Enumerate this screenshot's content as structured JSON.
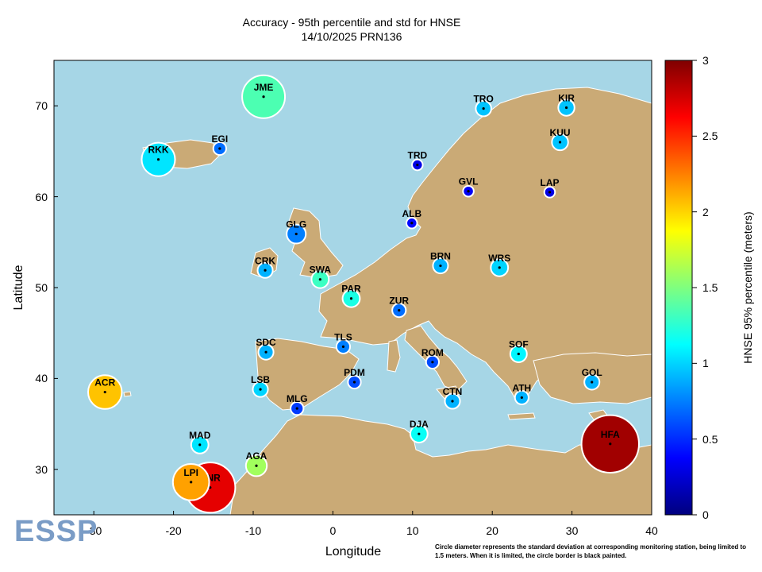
{
  "chart_data": {
    "type": "scatter",
    "title": "Accuracy - 95th percentile and std for HNSE",
    "subtitle": "14/10/2025 PRN136",
    "xlabel": "Longitude",
    "ylabel": "Latitude",
    "xlim": [
      -35,
      40
    ],
    "ylim": [
      25,
      75
    ],
    "xticks": [
      "-30",
      "-20",
      "-10",
      "0",
      "10",
      "20",
      "30",
      "40"
    ],
    "yticks": [
      "30",
      "40",
      "50",
      "60",
      "70"
    ],
    "colorbar": {
      "label": "HNSE 95% percentile (meters)",
      "range": [
        0,
        3
      ],
      "ticks": [
        "0",
        "0.5",
        "1",
        "1.5",
        "2",
        "2.5",
        "3"
      ]
    },
    "footnote": "Circle diameter represents the standard deviation at corresponding monitoring station, being limited to 1.5 meters. When it is limited, the circle border is black painted.",
    "logo": "ESSP",
    "stations": [
      {
        "name": "JME",
        "lon": -8.7,
        "lat": 71.0,
        "value": 1.35,
        "std": 1.0
      },
      {
        "name": "TRO",
        "lon": 18.9,
        "lat": 69.7,
        "value": 0.95,
        "std": 0.25
      },
      {
        "name": "KIR",
        "lon": 29.3,
        "lat": 69.8,
        "value": 0.95,
        "std": 0.27
      },
      {
        "name": "KUU",
        "lon": 28.5,
        "lat": 66.0,
        "value": 0.95,
        "std": 0.27
      },
      {
        "name": "EGI",
        "lon": -14.2,
        "lat": 65.3,
        "value": 0.7,
        "std": 0.18
      },
      {
        "name": "RKK",
        "lon": -21.9,
        "lat": 64.1,
        "value": 1.05,
        "std": 0.74
      },
      {
        "name": "TRD",
        "lon": 10.6,
        "lat": 63.5,
        "value": 0.3,
        "std": 0.12
      },
      {
        "name": "GVL",
        "lon": 17.0,
        "lat": 60.6,
        "value": 0.35,
        "std": 0.12
      },
      {
        "name": "LAP",
        "lon": 27.2,
        "lat": 60.5,
        "value": 0.3,
        "std": 0.12
      },
      {
        "name": "ALB",
        "lon": 9.9,
        "lat": 57.1,
        "value": 0.4,
        "std": 0.12
      },
      {
        "name": "GLG",
        "lon": -4.6,
        "lat": 55.9,
        "value": 0.75,
        "std": 0.35
      },
      {
        "name": "BRN",
        "lon": 13.5,
        "lat": 52.4,
        "value": 0.9,
        "std": 0.24
      },
      {
        "name": "WRS",
        "lon": 20.9,
        "lat": 52.2,
        "value": 1.0,
        "std": 0.3
      },
      {
        "name": "CRK",
        "lon": -8.5,
        "lat": 51.9,
        "value": 0.9,
        "std": 0.24
      },
      {
        "name": "SWA",
        "lon": -1.6,
        "lat": 50.9,
        "value": 1.3,
        "std": 0.3
      },
      {
        "name": "PAR",
        "lon": 2.3,
        "lat": 48.8,
        "value": 1.2,
        "std": 0.3
      },
      {
        "name": "ZUR",
        "lon": 8.3,
        "lat": 47.5,
        "value": 0.7,
        "std": 0.2
      },
      {
        "name": "TLS",
        "lon": 1.3,
        "lat": 43.5,
        "value": 0.75,
        "std": 0.2
      },
      {
        "name": "SDC",
        "lon": -8.4,
        "lat": 42.9,
        "value": 0.9,
        "std": 0.24
      },
      {
        "name": "SOF",
        "lon": 23.3,
        "lat": 42.7,
        "value": 1.1,
        "std": 0.28
      },
      {
        "name": "ROM",
        "lon": 12.5,
        "lat": 41.8,
        "value": 0.6,
        "std": 0.18
      },
      {
        "name": "GOL",
        "lon": 32.5,
        "lat": 39.6,
        "value": 0.9,
        "std": 0.24
      },
      {
        "name": "PDM",
        "lon": 2.7,
        "lat": 39.6,
        "value": 0.6,
        "std": 0.18
      },
      {
        "name": "ACR",
        "lon": -28.6,
        "lat": 38.5,
        "value": 2.05,
        "std": 0.75
      },
      {
        "name": "LSB",
        "lon": -9.1,
        "lat": 38.8,
        "value": 1.0,
        "std": 0.24
      },
      {
        "name": "ATH",
        "lon": 23.7,
        "lat": 37.9,
        "value": 0.9,
        "std": 0.2
      },
      {
        "name": "CTN",
        "lon": 15.0,
        "lat": 37.5,
        "value": 0.9,
        "std": 0.24
      },
      {
        "name": "MLG",
        "lon": -4.5,
        "lat": 36.7,
        "value": 0.55,
        "std": 0.18
      },
      {
        "name": "DJA",
        "lon": 10.8,
        "lat": 33.9,
        "value": 1.15,
        "std": 0.3
      },
      {
        "name": "HFA",
        "lon": 34.8,
        "lat": 32.8,
        "value": 2.9,
        "std": 1.4
      },
      {
        "name": "MAD",
        "lon": -16.7,
        "lat": 32.7,
        "value": 1.05,
        "std": 0.3
      },
      {
        "name": "AGA",
        "lon": -9.6,
        "lat": 30.4,
        "value": 1.6,
        "std": 0.4
      },
      {
        "name": "LPI",
        "lon": -17.8,
        "lat": 28.6,
        "value": 2.15,
        "std": 0.82
      },
      {
        "name": "CNR",
        "lon": -15.4,
        "lat": 28.0,
        "value": 2.7,
        "std": 1.2
      }
    ]
  }
}
